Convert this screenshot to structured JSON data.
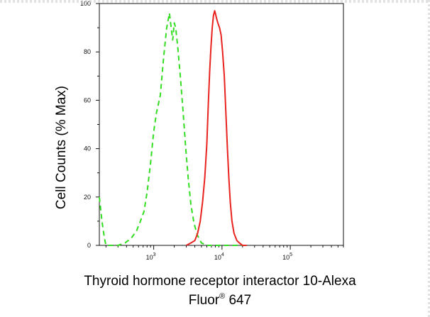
{
  "chart_data": {
    "type": "line",
    "xlabel": "Thyroid hormone receptor interactor 10-Alexa",
    "xlabel_line2_prefix": "Fluor",
    "xlabel_line2_mark": "®",
    "xlabel_line2_suffix": " 647",
    "ylabel": "Cell Counts (% Max)",
    "xscale": "log",
    "xlim": [
      160,
      600000
    ],
    "ylim": [
      0,
      100
    ],
    "yticks": [
      0,
      20,
      40,
      60,
      80,
      100
    ],
    "ytick_labels": [
      "0",
      "20",
      "40",
      "60",
      "80",
      "100"
    ],
    "xtick_major": [
      1000,
      10000,
      100000
    ],
    "xtick_labels": [
      {
        "base": "10",
        "exp": "3"
      },
      {
        "base": "10",
        "exp": "4"
      },
      {
        "base": "10",
        "exp": "5"
      }
    ],
    "grid": false,
    "legend": "none",
    "series": [
      {
        "color": "#33dd22",
        "style": "dashed",
        "x": [
          160,
          175,
          190,
          200,
          240,
          300,
          380,
          470,
          560,
          640,
          720,
          800,
          900,
          1000,
          1100,
          1250,
          1400,
          1550,
          1700,
          1800,
          1900,
          2000,
          2100,
          2250,
          2450,
          2700,
          2950,
          3200,
          3500,
          3900,
          4400,
          5000,
          6000,
          8000,
          12000,
          20000
        ],
        "y": [
          20,
          10,
          3,
          0,
          0,
          0,
          1,
          3,
          6,
          10,
          14,
          22,
          34,
          47,
          55,
          62,
          78,
          90,
          96,
          90,
          85,
          92,
          90,
          82,
          70,
          55,
          40,
          28,
          17,
          9,
          4,
          1,
          0,
          0,
          0,
          0
        ]
      },
      {
        "color": "#e8231f",
        "style": "solid",
        "x": [
          3000,
          3500,
          4000,
          4400,
          4800,
          5200,
          5600,
          6000,
          6300,
          6600,
          6900,
          7200,
          7500,
          7800,
          8000,
          8300,
          8700,
          9200,
          9700,
          10200,
          10800,
          11400,
          12000,
          12600,
          13200,
          14000,
          15000,
          16500,
          18000,
          20000,
          23000
        ],
        "y": [
          0,
          1,
          2,
          5,
          10,
          18,
          28,
          42,
          58,
          72,
          82,
          90,
          95,
          97,
          96,
          94,
          92,
          90,
          87,
          80,
          70,
          55,
          40,
          28,
          18,
          10,
          5,
          2,
          1,
          0,
          0
        ]
      }
    ]
  }
}
